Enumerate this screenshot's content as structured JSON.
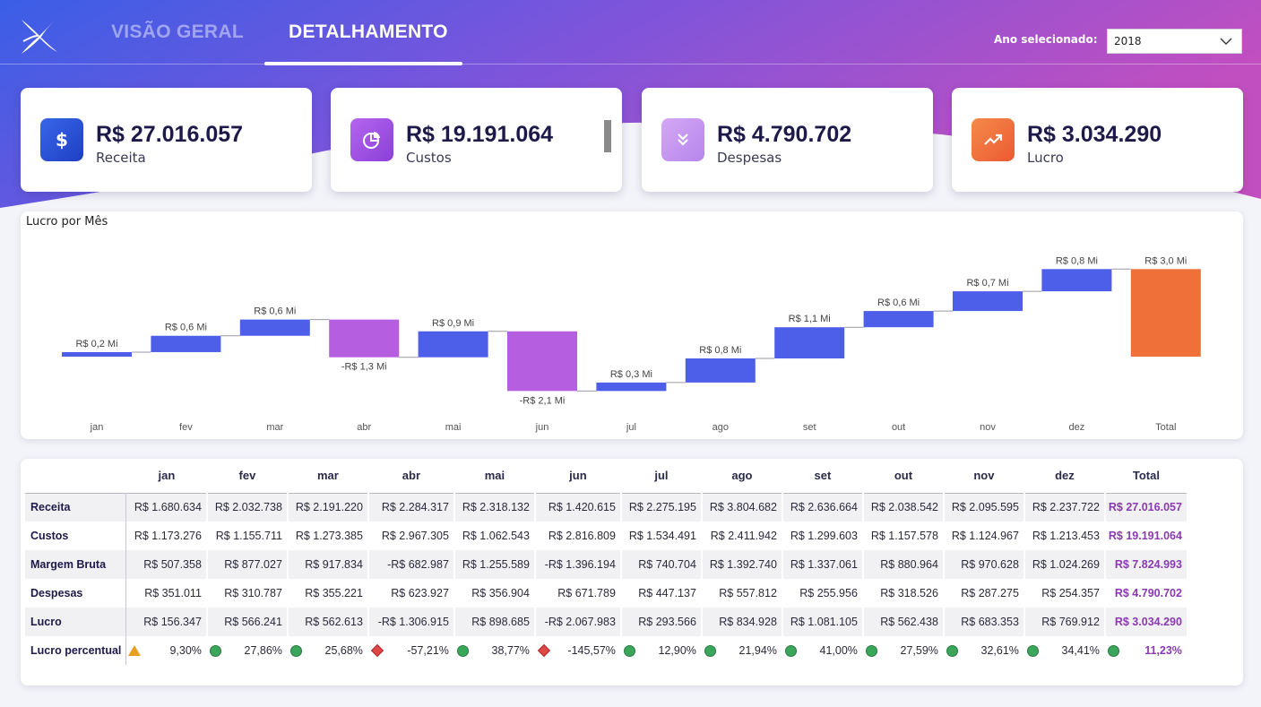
{
  "nav": {
    "tabs": [
      {
        "label": "VISÃO GERAL",
        "active": false
      },
      {
        "label": "DETALHAMENTO",
        "active": true
      }
    ],
    "year_label": "Ano selecionado:",
    "year_value": "2018"
  },
  "kpis": [
    {
      "value": "R$ 27.016.057",
      "label": "Receita",
      "icon": "dollar-icon",
      "color": "#2a54d8"
    },
    {
      "value": "R$ 19.191.064",
      "label": "Custos",
      "icon": "pie-chart-icon",
      "color": "#9e50e0"
    },
    {
      "value": "R$ 4.790.702",
      "label": "Despesas",
      "icon": "double-chevron-down-icon",
      "color": "#c69af0"
    },
    {
      "value": "R$ 3.034.290",
      "label": "Lucro",
      "icon": "trending-up-icon",
      "color": "#f26a3a"
    }
  ],
  "chart_data": {
    "type": "waterfall",
    "title": "Lucro por Mês",
    "categories": [
      "jan",
      "fev",
      "mar",
      "abr",
      "mai",
      "jun",
      "jul",
      "ago",
      "set",
      "out",
      "nov",
      "dez",
      "Total"
    ],
    "values": [
      0.156347,
      0.566241,
      0.562613,
      -1.306915,
      0.898685,
      -2.067983,
      0.293566,
      0.834928,
      1.081105,
      0.562438,
      0.683353,
      0.769912,
      3.03429
    ],
    "labels": [
      "R$ 0,2 Mi",
      "R$ 0,6 Mi",
      "R$ 0,6 Mi",
      "-R$ 1,3 Mi",
      "R$ 0,9 Mi",
      "-R$ 2,1 Mi",
      "R$ 0,3 Mi",
      "R$ 0,8 Mi",
      "R$ 1,1 Mi",
      "R$ 0,6 Mi",
      "R$ 0,7 Mi",
      "R$ 0,8 Mi",
      "R$ 3,0 Mi"
    ],
    "colors": {
      "increase": "#4d5fe8",
      "decrease": "#b65ee0",
      "total": "#f0703a"
    }
  },
  "table": {
    "columns": [
      "",
      "jan",
      "fev",
      "mar",
      "abr",
      "mai",
      "jun",
      "jul",
      "ago",
      "set",
      "out",
      "nov",
      "dez",
      "Total"
    ],
    "rows": [
      {
        "label": "Receita",
        "cells": [
          "R$ 1.680.634",
          "R$ 2.032.738",
          "R$ 2.191.220",
          "R$ 2.284.317",
          "R$ 2.318.132",
          "R$ 1.420.615",
          "R$ 2.275.195",
          "R$ 3.804.682",
          "R$ 2.636.664",
          "R$ 2.038.542",
          "R$ 2.095.595",
          "R$ 2.237.722",
          "R$ 27.016.057"
        ]
      },
      {
        "label": "Custos",
        "cells": [
          "R$ 1.173.276",
          "R$ 1.155.711",
          "R$ 1.273.385",
          "R$ 2.967.305",
          "R$ 1.062.543",
          "R$ 2.816.809",
          "R$ 1.534.491",
          "R$ 2.411.942",
          "R$ 1.299.603",
          "R$ 1.157.578",
          "R$ 1.124.967",
          "R$ 1.213.453",
          "R$ 19.191.064"
        ]
      },
      {
        "label": "Margem Bruta",
        "cells": [
          "R$ 507.358",
          "R$ 877.027",
          "R$ 917.834",
          "-R$ 682.987",
          "R$ 1.255.589",
          "-R$ 1.396.194",
          "R$ 740.704",
          "R$ 1.392.740",
          "R$ 1.337.061",
          "R$ 880.964",
          "R$ 970.628",
          "R$ 1.024.269",
          "R$ 7.824.993"
        ]
      },
      {
        "label": "Despesas",
        "cells": [
          "R$ 351.011",
          "R$ 310.787",
          "R$ 355.221",
          "R$ 623.927",
          "R$ 356.904",
          "R$ 671.789",
          "R$ 447.137",
          "R$ 557.812",
          "R$ 255.956",
          "R$ 318.526",
          "R$ 287.275",
          "R$ 254.357",
          "R$ 4.790.702"
        ]
      },
      {
        "label": "Lucro",
        "cells": [
          "R$ 156.347",
          "R$ 566.241",
          "R$ 562.613",
          "-R$ 1.306.915",
          "R$ 898.685",
          "-R$ 2.067.983",
          "R$ 293.566",
          "R$ 834.928",
          "R$ 1.081.105",
          "R$ 562.438",
          "R$ 683.353",
          "R$ 769.912",
          "R$ 3.034.290"
        ]
      }
    ],
    "pct_row": {
      "label": "Lucro percentual",
      "cells": [
        {
          "value": "9,30%",
          "status": "triangle-warning-icon"
        },
        {
          "value": "27,86%",
          "status": "green-circle-icon"
        },
        {
          "value": "25,68%",
          "status": "green-circle-icon"
        },
        {
          "value": "-57,21%",
          "status": "red-diamond-icon"
        },
        {
          "value": "38,77%",
          "status": "green-circle-icon"
        },
        {
          "value": "-145,57%",
          "status": "red-diamond-icon"
        },
        {
          "value": "12,90%",
          "status": "green-circle-icon"
        },
        {
          "value": "21,94%",
          "status": "green-circle-icon"
        },
        {
          "value": "41,00%",
          "status": "green-circle-icon"
        },
        {
          "value": "27,59%",
          "status": "green-circle-icon"
        },
        {
          "value": "32,61%",
          "status": "green-circle-icon"
        },
        {
          "value": "34,41%",
          "status": "green-circle-icon"
        },
        {
          "value": "11,23%",
          "status": "green-circle-icon"
        }
      ]
    }
  }
}
